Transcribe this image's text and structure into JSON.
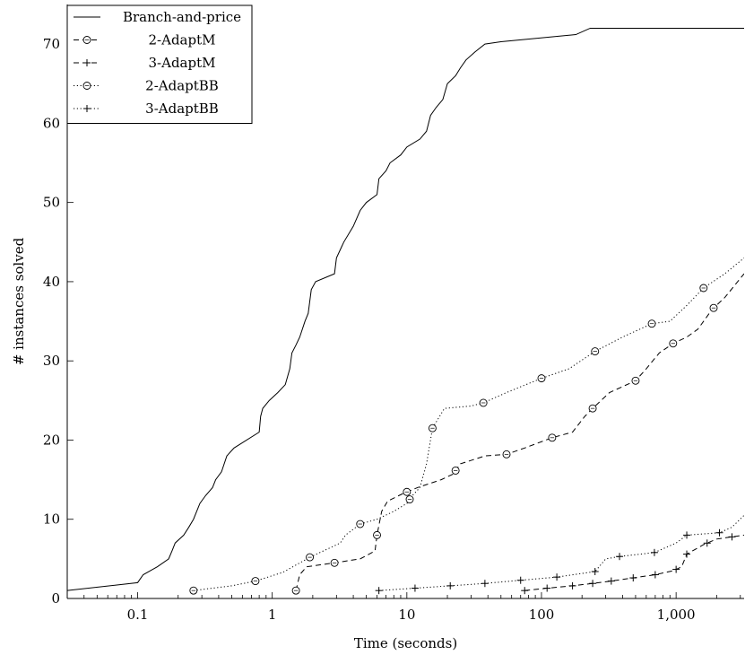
{
  "chart_data": {
    "type": "line",
    "title": "",
    "xlabel": "Time (seconds)",
    "ylabel": "# instances solved",
    "xscale": "log",
    "xlim": [
      0.03,
      3200
    ],
    "ylim": [
      0,
      75
    ],
    "xticks": [
      {
        "value": 0.1,
        "label": "0.1"
      },
      {
        "value": 1,
        "label": "1"
      },
      {
        "value": 10,
        "label": "10"
      },
      {
        "value": 100,
        "label": "100"
      },
      {
        "value": 1000,
        "label": "1,000"
      }
    ],
    "yticks": [
      {
        "value": 0,
        "label": "0"
      },
      {
        "value": 10,
        "label": "10"
      },
      {
        "value": 20,
        "label": "20"
      },
      {
        "value": 30,
        "label": "30"
      },
      {
        "value": 40,
        "label": "40"
      },
      {
        "value": 50,
        "label": "50"
      },
      {
        "value": 60,
        "label": "60"
      },
      {
        "value": 70,
        "label": "70"
      }
    ],
    "grid": false,
    "legend_position": "top-left",
    "series": [
      {
        "name": "Branch-and-price",
        "dash": "solid",
        "marker": "none",
        "points": [
          [
            0.03,
            1
          ],
          [
            0.1,
            2
          ],
          [
            0.11,
            3
          ],
          [
            0.14,
            4
          ],
          [
            0.17,
            5
          ],
          [
            0.18,
            6
          ],
          [
            0.19,
            7
          ],
          [
            0.22,
            8
          ],
          [
            0.24,
            9
          ],
          [
            0.26,
            10
          ],
          [
            0.29,
            12
          ],
          [
            0.32,
            13
          ],
          [
            0.36,
            14
          ],
          [
            0.38,
            15
          ],
          [
            0.42,
            16
          ],
          [
            0.46,
            18
          ],
          [
            0.52,
            19
          ],
          [
            0.8,
            21
          ],
          [
            0.82,
            23
          ],
          [
            0.85,
            24
          ],
          [
            0.95,
            25
          ],
          [
            1.1,
            26
          ],
          [
            1.25,
            27
          ],
          [
            1.35,
            29
          ],
          [
            1.4,
            31
          ],
          [
            1.5,
            32
          ],
          [
            1.6,
            33
          ],
          [
            1.75,
            35
          ],
          [
            1.85,
            36
          ],
          [
            1.95,
            39
          ],
          [
            2.1,
            40
          ],
          [
            2.9,
            41
          ],
          [
            3.0,
            43
          ],
          [
            3.4,
            45
          ],
          [
            4.0,
            47
          ],
          [
            4.5,
            49
          ],
          [
            5.0,
            50
          ],
          [
            6.0,
            51
          ],
          [
            6.2,
            53
          ],
          [
            7.0,
            54
          ],
          [
            7.5,
            55
          ],
          [
            9.0,
            56
          ],
          [
            10.0,
            57
          ],
          [
            12.5,
            58
          ],
          [
            14.0,
            59
          ],
          [
            15.0,
            61
          ],
          [
            16.5,
            62
          ],
          [
            18.5,
            63
          ],
          [
            20.0,
            65
          ],
          [
            23.0,
            66
          ],
          [
            25.0,
            67
          ],
          [
            27.5,
            68
          ],
          [
            32.0,
            69
          ],
          [
            38.0,
            70
          ],
          [
            50.0,
            70.3
          ],
          [
            180,
            71.2
          ],
          [
            230,
            72
          ],
          [
            3200,
            72
          ]
        ]
      },
      {
        "name": "2-AdaptM",
        "dash": "dashed",
        "marker": "circle",
        "points": [
          [
            1.5,
            1
          ],
          [
            1.6,
            3
          ],
          [
            1.8,
            4
          ],
          [
            2.9,
            4.5
          ],
          [
            4.5,
            5
          ],
          [
            5.8,
            6
          ],
          [
            6.0,
            8
          ],
          [
            6.5,
            11
          ],
          [
            7.2,
            12.3
          ],
          [
            9.5,
            13.3
          ],
          [
            12,
            14
          ],
          [
            18,
            15
          ],
          [
            22,
            15.7
          ],
          [
            25,
            17
          ],
          [
            38,
            18
          ],
          [
            55,
            18.2
          ],
          [
            75,
            19
          ],
          [
            120,
            20.3
          ],
          [
            170,
            21
          ],
          [
            210,
            23
          ],
          [
            240,
            24
          ],
          [
            320,
            26
          ],
          [
            500,
            27.5
          ],
          [
            600,
            29
          ],
          [
            750,
            31
          ],
          [
            950,
            32.2
          ],
          [
            1200,
            33
          ],
          [
            1450,
            34
          ],
          [
            1600,
            35
          ],
          [
            1850,
            36.5
          ],
          [
            2300,
            38
          ],
          [
            3200,
            41
          ]
        ],
        "markers": [
          1.5,
          2.9,
          6.0,
          10,
          23,
          55,
          120,
          240,
          500,
          950,
          1900
        ]
      },
      {
        "name": "3-AdaptM",
        "dash": "dashed",
        "marker": "plus",
        "points": [
          [
            75,
            1
          ],
          [
            110,
            1.3
          ],
          [
            170,
            1.6
          ],
          [
            240,
            1.9
          ],
          [
            330,
            2.2
          ],
          [
            480,
            2.6
          ],
          [
            700,
            3
          ],
          [
            950,
            3.5
          ],
          [
            1100,
            4
          ],
          [
            1200,
            5.6
          ],
          [
            1600,
            6.8
          ],
          [
            2000,
            7.5
          ],
          [
            3200,
            8
          ]
        ],
        "markers": [
          75,
          110,
          170,
          240,
          330,
          480,
          700,
          1000,
          1200,
          1700,
          2600
        ]
      },
      {
        "name": "2-AdaptBB",
        "dash": "dotted",
        "marker": "circle",
        "points": [
          [
            0.26,
            1
          ],
          [
            0.5,
            1.6
          ],
          [
            0.75,
            2.2
          ],
          [
            1.2,
            3.3
          ],
          [
            1.9,
            5.2
          ],
          [
            3.2,
            7
          ],
          [
            3.5,
            8
          ],
          [
            4.5,
            9.4
          ],
          [
            6.0,
            10
          ],
          [
            8.0,
            11
          ],
          [
            10.0,
            12
          ],
          [
            11.0,
            13
          ],
          [
            12.5,
            14
          ],
          [
            14.0,
            17
          ],
          [
            15.5,
            21.5
          ],
          [
            19.0,
            24
          ],
          [
            30.0,
            24.3
          ],
          [
            37,
            24.7
          ],
          [
            55,
            26
          ],
          [
            100,
            27.8
          ],
          [
            160,
            29
          ],
          [
            250,
            31.2
          ],
          [
            400,
            33
          ],
          [
            660,
            34.7
          ],
          [
            900,
            35
          ],
          [
            1200,
            37
          ],
          [
            1600,
            39.2
          ],
          [
            2300,
            41
          ],
          [
            3200,
            43
          ]
        ],
        "markers": [
          0.26,
          0.75,
          1.9,
          4.5,
          10.5,
          15.5,
          37,
          100,
          250,
          660,
          1600
        ]
      },
      {
        "name": "3-AdaptBB",
        "dash": "dotted",
        "marker": "plus",
        "points": [
          [
            6.2,
            1
          ],
          [
            11.5,
            1.3
          ],
          [
            21,
            1.6
          ],
          [
            38,
            1.9
          ],
          [
            70,
            2.3
          ],
          [
            130,
            2.7
          ],
          [
            250,
            3.4
          ],
          [
            300,
            5
          ],
          [
            380,
            5.3
          ],
          [
            690,
            5.8
          ],
          [
            1000,
            7
          ],
          [
            1200,
            8
          ],
          [
            2100,
            8.3
          ],
          [
            2600,
            9
          ],
          [
            3200,
            10.5
          ]
        ],
        "markers": [
          6.2,
          11.5,
          21,
          38,
          70,
          130,
          250,
          380,
          690,
          1200,
          2100
        ]
      }
    ]
  }
}
